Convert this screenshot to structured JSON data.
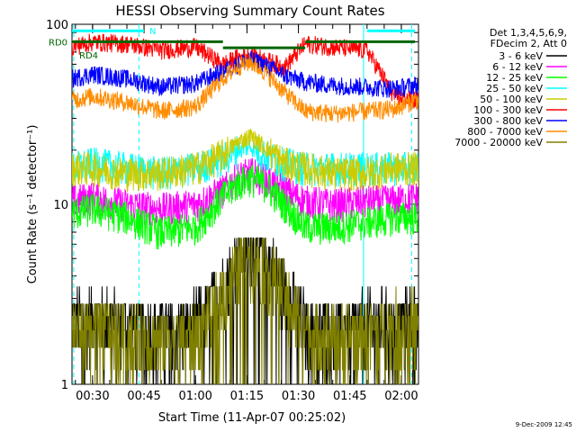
{
  "chart_data": {
    "type": "line",
    "title": "HESSI Observing Summary Count Rates",
    "xlabel": "Start Time (11-Apr-07 00:25:02)",
    "ylabel": "Count Rate (s⁻¹ detector⁻¹)",
    "x_range_minutes": [
      24,
      125
    ],
    "ylim": [
      1,
      100
    ],
    "yscale": "log",
    "x_ticks": [
      {
        "label": "00:30",
        "minutes": 30
      },
      {
        "label": "00:45",
        "minutes": 45
      },
      {
        "label": "01:00",
        "minutes": 60
      },
      {
        "label": "01:15",
        "minutes": 75
      },
      {
        "label": "01:30",
        "minutes": 90
      },
      {
        "label": "01:45",
        "minutes": 105
      },
      {
        "label": "02:00",
        "minutes": 120
      }
    ],
    "y_ticks": [
      {
        "label": "1",
        "value": 1
      },
      {
        "label": "10",
        "value": 10
      },
      {
        "label": "100",
        "value": 100
      }
    ],
    "legend_header": [
      "Det 1,3,4,5,6,9,",
      "FDecim 2, Att 0"
    ],
    "legend_placement": "right",
    "series": [
      {
        "name": "3 - 6 keV",
        "color": "#000000",
        "x": [
          24,
          30,
          40,
          50,
          60,
          68,
          72,
          76,
          80,
          86,
          92,
          100,
          110,
          118,
          124
        ],
        "y": [
          2.3,
          2.4,
          2.2,
          2.1,
          2.2,
          3.5,
          5.0,
          6.5,
          5.5,
          3.5,
          2.2,
          2.1,
          2.2,
          2.3,
          2.4
        ]
      },
      {
        "name": "6 - 12 keV",
        "color": "#ff00ff",
        "x": [
          24,
          30,
          40,
          50,
          60,
          68,
          72,
          76,
          80,
          86,
          92,
          100,
          110,
          118,
          124
        ],
        "y": [
          10.5,
          11,
          10,
          9.5,
          10,
          12,
          14,
          15,
          14,
          12,
          10.5,
          10,
          10.5,
          10.5,
          11
        ]
      },
      {
        "name": "12 - 25 keV",
        "color": "#00ff00",
        "x": [
          24,
          30,
          40,
          50,
          60,
          68,
          72,
          76,
          80,
          86,
          92,
          100,
          110,
          118,
          124
        ],
        "y": [
          9,
          9.5,
          8.5,
          7,
          7.5,
          11,
          13,
          14,
          13,
          10,
          7.5,
          7.5,
          8,
          8.5,
          8.5
        ]
      },
      {
        "name": "25 - 50 keV",
        "color": "#00ffff",
        "x": [
          24,
          30,
          40,
          50,
          60,
          68,
          72,
          76,
          80,
          86,
          92,
          100,
          110,
          118,
          124
        ],
        "y": [
          16,
          17,
          16,
          15,
          16,
          18,
          20,
          21,
          19,
          17,
          16,
          16,
          16,
          16,
          16
        ]
      },
      {
        "name": "50 - 100 keV",
        "color": "#cccc00",
        "x": [
          24,
          30,
          40,
          50,
          60,
          68,
          72,
          76,
          80,
          86,
          92,
          100,
          110,
          118,
          124
        ],
        "y": [
          16,
          16,
          15,
          15,
          16,
          19,
          22,
          24,
          21,
          17,
          16,
          15,
          15,
          16,
          16
        ]
      },
      {
        "name": "100 - 300 keV",
        "color": "#ff0000",
        "x": [
          24,
          30,
          40,
          50,
          60,
          68,
          72,
          76,
          80,
          86,
          92,
          100,
          110,
          118,
          124
        ],
        "y": [
          75,
          80,
          78,
          72,
          75,
          60,
          65,
          68,
          64,
          58,
          78,
          75,
          72,
          40,
          38
        ]
      },
      {
        "name": "300 - 800 keV",
        "color": "#0000ff",
        "x": [
          24,
          30,
          40,
          50,
          60,
          68,
          72,
          76,
          80,
          86,
          92,
          100,
          110,
          118,
          124
        ],
        "y": [
          50,
          53,
          50,
          45,
          47,
          55,
          60,
          64,
          60,
          52,
          48,
          46,
          45,
          44,
          46
        ]
      },
      {
        "name": "800 - 7000 keV",
        "color": "#ff8c00",
        "x": [
          24,
          30,
          40,
          50,
          60,
          68,
          72,
          76,
          80,
          86,
          92,
          100,
          110,
          118,
          124
        ],
        "y": [
          38,
          40,
          37,
          33,
          35,
          50,
          58,
          62,
          55,
          42,
          33,
          32,
          33,
          34,
          38
        ]
      },
      {
        "name": "7000 - 20000 keV",
        "color": "#808000",
        "x": [
          24,
          30,
          40,
          50,
          60,
          68,
          72,
          76,
          80,
          86,
          92,
          100,
          110,
          118,
          124
        ],
        "y": [
          2.1,
          2.2,
          2.0,
          1.8,
          1.9,
          3.2,
          4.5,
          5.5,
          4.8,
          3.2,
          2.0,
          1.9,
          2.0,
          2.2,
          2.3
        ]
      }
    ],
    "attenuator_state": [
      {
        "label": "RD0",
        "color": "#006400",
        "value": 80,
        "segments": [
          [
            24,
            68
          ],
          [
            92,
            124
          ]
        ]
      },
      {
        "label": "RD4",
        "color": "#006400",
        "value": 74,
        "segments": [
          [
            68,
            92
          ]
        ]
      }
    ],
    "data_gaps": {
      "label": "N",
      "color": "#00ffff",
      "level": 92,
      "segments": [
        [
          24,
          45
        ],
        [
          110,
          124
        ]
      ]
    },
    "vertical_markers": [
      {
        "minutes": 24.5,
        "style": "dashed"
      },
      {
        "minutes": 43.5,
        "style": "dashed"
      },
      {
        "minutes": 109,
        "style": "solid"
      },
      {
        "minutes": 123,
        "style": "dashed"
      }
    ],
    "footer": "9-Dec-2009 12:45"
  }
}
